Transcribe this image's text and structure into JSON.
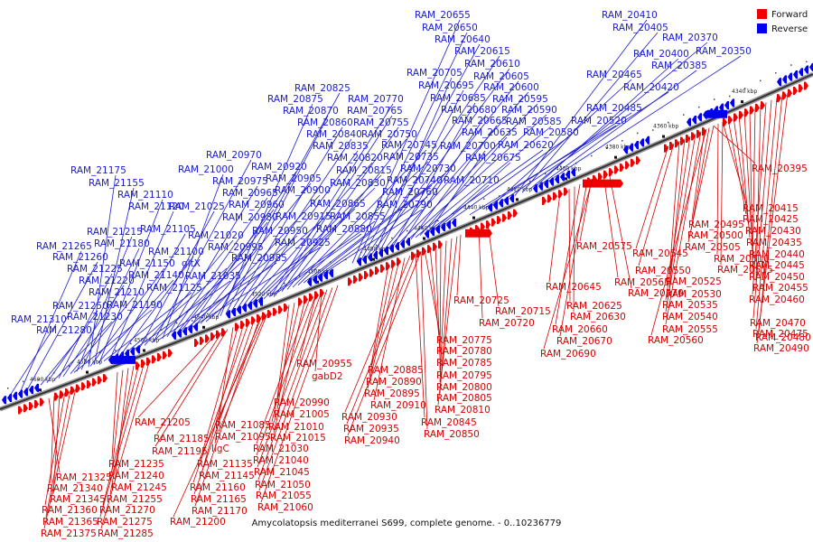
{
  "legend": {
    "forward": {
      "label": "Forward",
      "color": "#ee0000"
    },
    "reverse": {
      "label": "Reverse",
      "color": "#0000ee"
    }
  },
  "caption": "Amycolatopsis mediterranei S699, complete genome. - 0..10236779",
  "ticks": [
    "4600 kbp",
    "4580 kbp",
    "4560 kbp",
    "4540 kbp",
    "4520 kbp",
    "4500 kbp",
    "4480 kbp",
    "4460 kbp",
    "4440 kbp",
    "4420 kbp",
    "4400 kbp",
    "4380 kbp",
    "4360 kbp",
    "4340 kbp"
  ],
  "reverse_genes": [
    "RAM_21310",
    "RAM_21280",
    "RAM_21250",
    "RAM_21230",
    "RAM_21265",
    "RAM_21260",
    "RAM_21225",
    "RAM_21220",
    "RAM_21210",
    "RAM_21190",
    "RAM_21215",
    "RAM_21180",
    "RAM_21150",
    "RAM_21140",
    "RAM_21125",
    "RAM_21175",
    "RAM_21155",
    "RAM_21110",
    "RAM_21120",
    "RAM_21105",
    "RAM_21100",
    "gltX",
    "RAM_21035",
    "RAM_21025",
    "RAM_21020",
    "RAM_20995",
    "RAM_20985",
    "RAM_20970",
    "RAM_21000",
    "RAM_20975",
    "RAM_20965",
    "RAM_20960",
    "RAM_20980",
    "RAM_20950",
    "RAM_20925",
    "RAM_20920",
    "RAM_20905",
    "RAM_20900",
    "RAM_20915",
    "RAM_20825",
    "RAM_20875",
    "RAM_20870",
    "RAM_20860",
    "RAM_20840",
    "RAM_20835",
    "RAM_20820",
    "RAM_20815",
    "RAM_20830",
    "RAM_20865",
    "RAM_20855",
    "RAM_20880",
    "RAM_20770",
    "RAM_20765",
    "RAM_20755",
    "RAM_20750",
    "RAM_20745",
    "RAM_20735",
    "RAM_20730",
    "RAM_20740",
    "RAM_20760",
    "RAM_20790",
    "RAM_20655",
    "RAM_20650",
    "RAM_20640",
    "RAM_20615",
    "RAM_20610",
    "RAM_20705",
    "RAM_20695",
    "RAM_20605",
    "RAM_20600",
    "RAM_20685",
    "RAM_20595",
    "RAM_20680",
    "RAM_20590",
    "RAM_20665",
    "RAM_20585",
    "RAM_20635",
    "RAM_20620",
    "RAM_20700",
    "RAM_20675",
    "RAM_20710",
    "RAM_20580",
    "RAM_20520",
    "RAM_20485",
    "RAM_20465",
    "RAM_20420",
    "RAM_20410",
    "RAM_20405",
    "RAM_20370",
    "RAM_20400",
    "RAM_20385",
    "RAM_20350"
  ],
  "forward_genes": [
    "RAM_20395",
    "RAM_20415",
    "RAM_20425",
    "RAM_20430",
    "RAM_20435",
    "RAM_20440",
    "RAM_20445",
    "RAM_20450",
    "RAM_20455",
    "RAM_20460",
    "RAM_20470",
    "RAM_20475",
    "RAM_20480",
    "RAM_20490",
    "RAM_20495",
    "RAM_20500",
    "RAM_20505",
    "RAM_20510",
    "RAM_20515",
    "RAM_20545",
    "RAM_20550",
    "RAM_20525",
    "RAM_20530",
    "RAM_20535",
    "RAM_20540",
    "RAM_20555",
    "RAM_20560",
    "RAM_20575",
    "RAM_20565",
    "RAM_20570",
    "RAM_20645",
    "RAM_20625",
    "RAM_20630",
    "RAM_20660",
    "RAM_20670",
    "RAM_20690",
    "RAM_20725",
    "RAM_20715",
    "RAM_20720",
    "RAM_20775",
    "RAM_20780",
    "RAM_20785",
    "RAM_20795",
    "RAM_20800",
    "RAM_20805",
    "RAM_20810",
    "RAM_20845",
    "RAM_20850",
    "RAM_20885",
    "RAM_20890",
    "RAM_20895",
    "RAM_20910",
    "RAM_20930",
    "RAM_20935",
    "RAM_20940",
    "RAM_20955",
    "gabD2",
    "RAM_20990",
    "RAM_21005",
    "RAM_21010",
    "RAM_21015",
    "RAM_21030",
    "RAM_21040",
    "RAM_21045",
    "RAM_21050",
    "RAM_21055",
    "RAM_21060",
    "RAM_21085",
    "RAM_21095",
    "RAM_21205",
    "RAM_21185",
    "RAM_21195",
    "ligC",
    "RAM_21135",
    "RAM_21145",
    "RAM_21160",
    "RAM_21165",
    "RAM_21170",
    "RAM_21200",
    "RAM_21235",
    "RAM_21240",
    "RAM_21245",
    "RAM_21255",
    "RAM_21270",
    "RAM_21275",
    "RAM_21285",
    "RAM_21325",
    "RAM_21340",
    "RAM_21345",
    "RAM_21360",
    "RAM_21365",
    "RAM_21375"
  ]
}
